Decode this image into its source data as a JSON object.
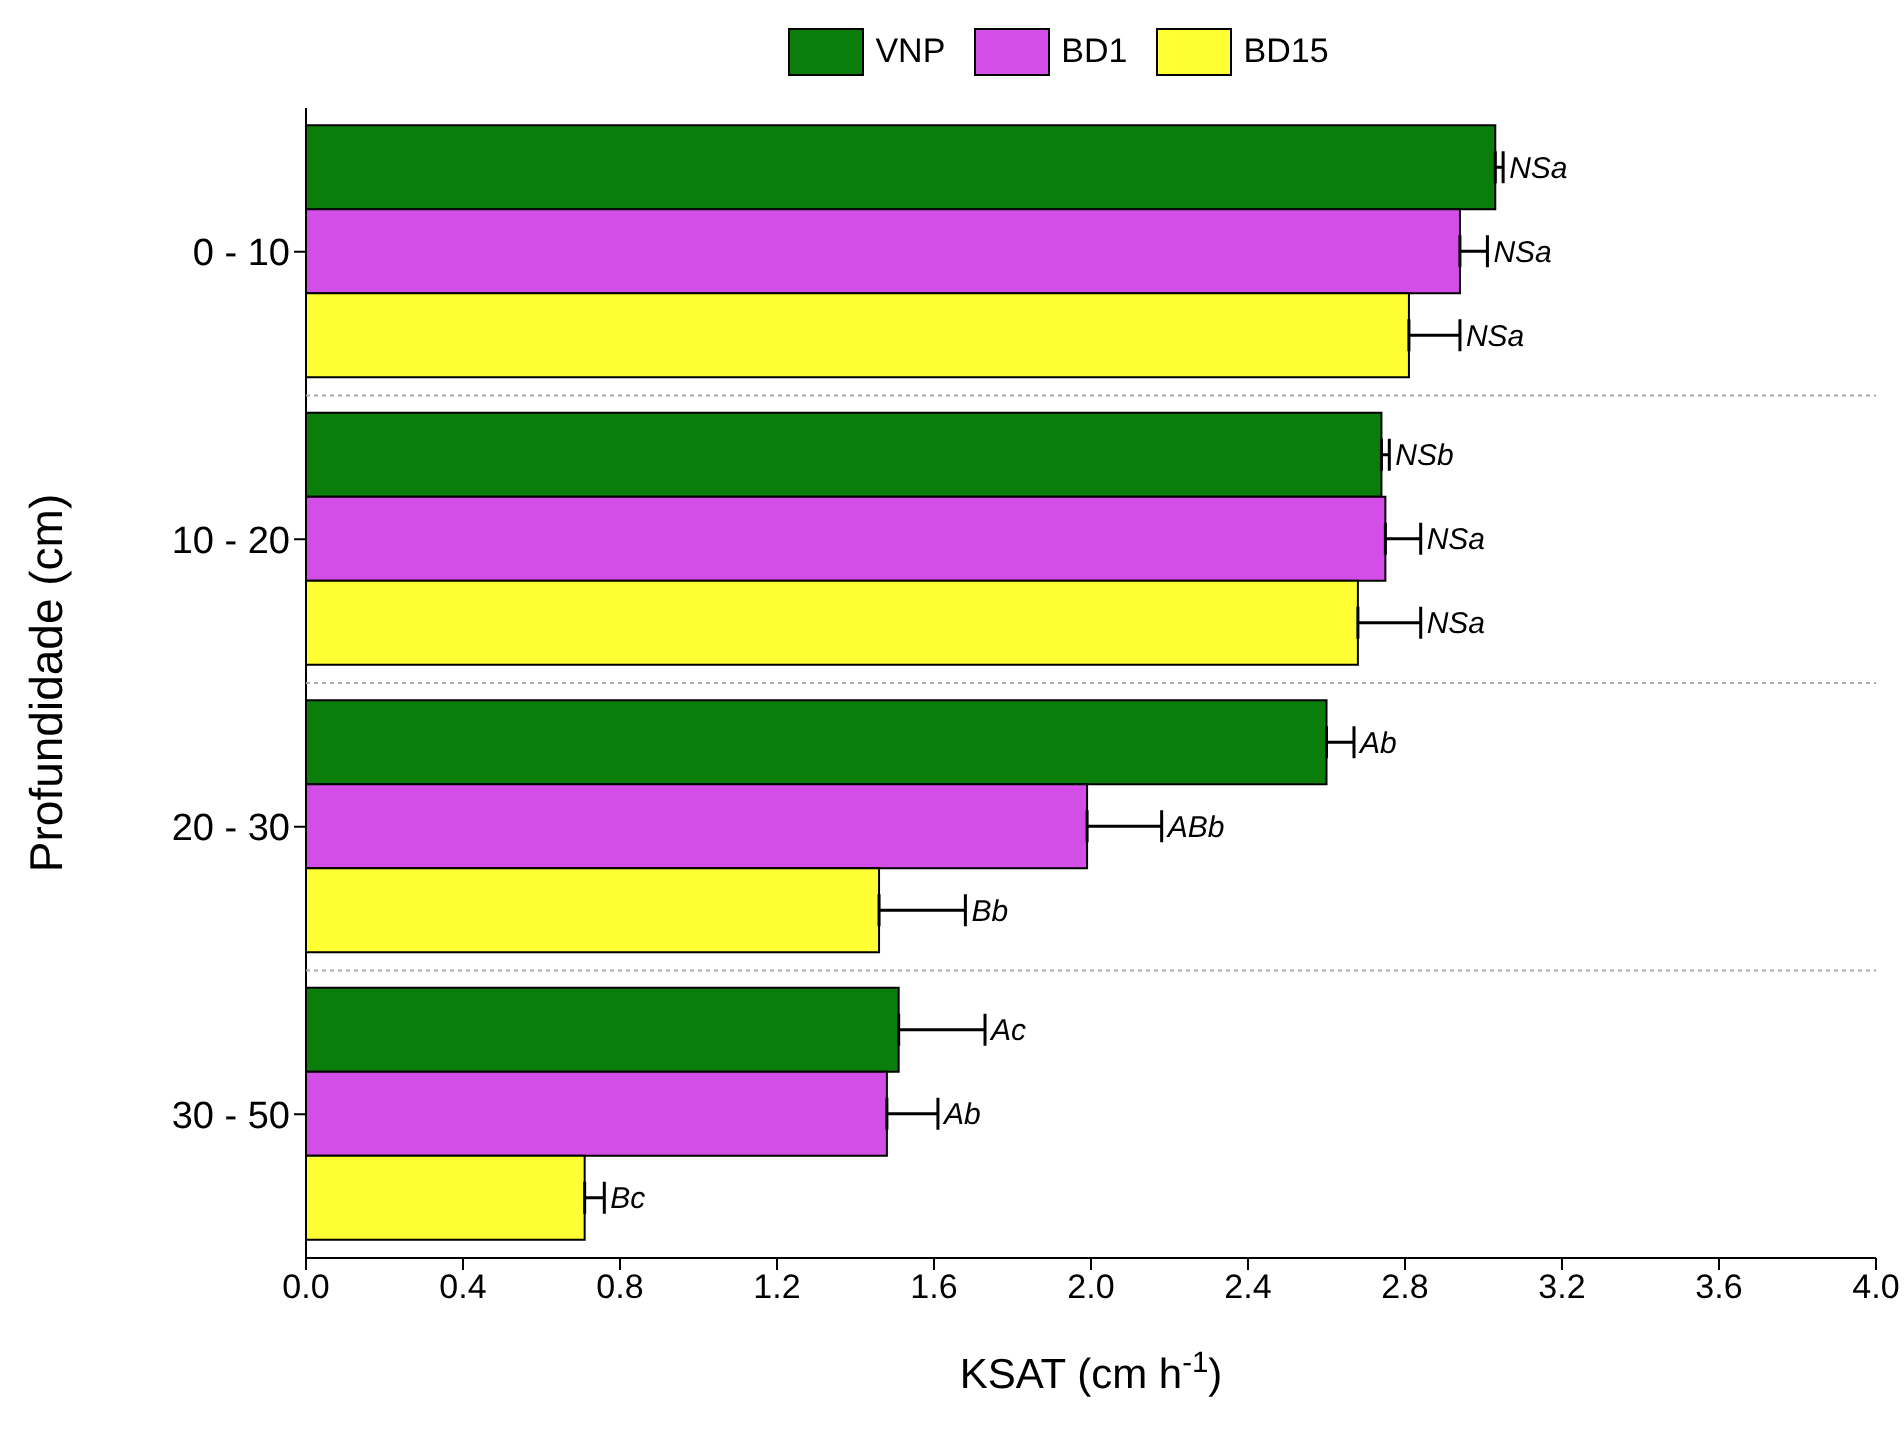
{
  "chart_data": {
    "type": "bar",
    "orientation": "horizontal",
    "xlabel": "KSAT (cm h$^{-1}$)",
    "ylabel": "Profundidade (cm)",
    "categories": [
      "0 - 10",
      "10 - 20",
      "20 - 30",
      "30 - 50"
    ],
    "series": [
      {
        "name": "VNP",
        "color": "#0b7d0b",
        "values": [
          3.03,
          2.74,
          2.6,
          1.51
        ],
        "errors": [
          [
            3.03,
            3.05
          ],
          [
            2.74,
            2.76
          ],
          [
            2.6,
            2.67
          ],
          [
            1.51,
            1.73
          ]
        ],
        "value_labels": [
          "NSa",
          "NSb",
          "Ab",
          "Ac"
        ]
      },
      {
        "name": "BD1",
        "color": "#d24ee6",
        "values": [
          2.94,
          2.75,
          1.99,
          1.48
        ],
        "errors": [
          [
            2.94,
            3.01
          ],
          [
            2.75,
            2.84
          ],
          [
            1.99,
            2.18
          ],
          [
            1.48,
            1.61
          ]
        ],
        "value_labels": [
          "NSa",
          "NSa",
          "ABb",
          "Ab"
        ]
      },
      {
        "name": "BD15",
        "color": "#ffff33",
        "values": [
          2.81,
          2.68,
          1.46,
          0.71
        ],
        "errors": [
          [
            2.81,
            2.94
          ],
          [
            2.68,
            2.84
          ],
          [
            1.46,
            1.68
          ],
          [
            0.71,
            0.76
          ]
        ],
        "value_labels": [
          "NSa",
          "NSa",
          "Bb",
          "Bc"
        ]
      }
    ],
    "xlim": [
      0,
      4
    ],
    "xticks": [
      {
        "value": 0,
        "label": "0.0"
      },
      0.4,
      0.8,
      1.2,
      1.6,
      {
        "value": 2,
        "label": "2.0"
      },
      2.4,
      2.8,
      3.2,
      3.6,
      {
        "value": 4,
        "label": "4.0"
      }
    ],
    "grid": "y",
    "legend": "top"
  }
}
